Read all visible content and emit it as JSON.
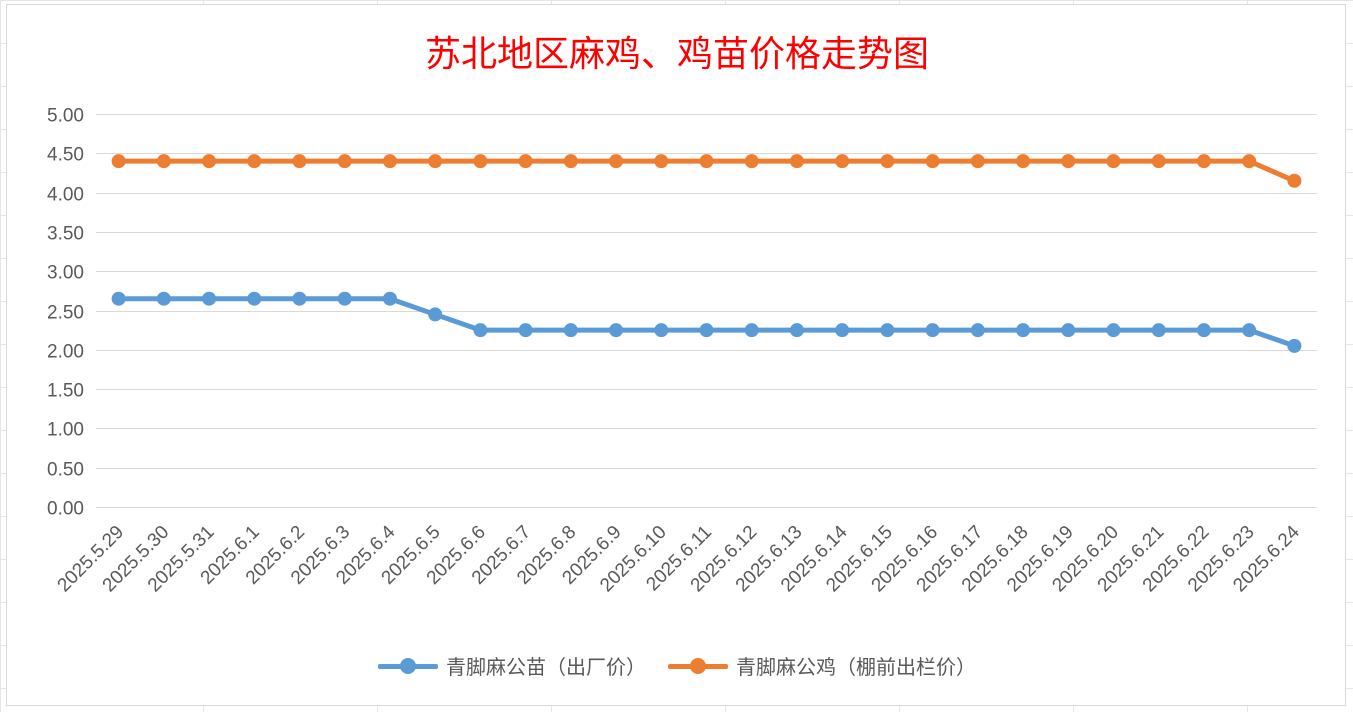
{
  "colors": {
    "title": "#ff0000",
    "series_blue": "#5b9bd5",
    "series_orange": "#ed7d31",
    "gridline": "#d9d9d9",
    "tick_text": "#595959"
  },
  "chart_data": {
    "type": "line",
    "title": "苏北地区麻鸡、鸡苗价格走势图",
    "xlabel": "",
    "ylabel": "",
    "ylim": [
      0,
      5
    ],
    "ytick_step": 0.5,
    "ytick_labels": [
      "0.00",
      "0.50",
      "1.00",
      "1.50",
      "2.00",
      "2.50",
      "3.00",
      "3.50",
      "4.00",
      "4.50",
      "5.00"
    ],
    "grid": true,
    "legend_position": "bottom",
    "categories": [
      "2025.5.29",
      "2025.5.30",
      "2025.5.31",
      "2025.6.1",
      "2025.6.2",
      "2025.6.3",
      "2025.6.4",
      "2025.6.5",
      "2025.6.6",
      "2025.6.7",
      "2025.6.8",
      "2025.6.9",
      "2025.6.10",
      "2025.6.11",
      "2025.6.12",
      "2025.6.13",
      "2025.6.14",
      "2025.6.15",
      "2025.6.16",
      "2025.6.17",
      "2025.6.18",
      "2025.6.19",
      "2025.6.20",
      "2025.6.21",
      "2025.6.22",
      "2025.6.23",
      "2025.6.24"
    ],
    "series": [
      {
        "name": "青脚麻公苗（出厂价）",
        "color": "#5b9bd5",
        "values": [
          2.65,
          2.65,
          2.65,
          2.65,
          2.65,
          2.65,
          2.65,
          2.45,
          2.25,
          2.25,
          2.25,
          2.25,
          2.25,
          2.25,
          2.25,
          2.25,
          2.25,
          2.25,
          2.25,
          2.25,
          2.25,
          2.25,
          2.25,
          2.25,
          2.25,
          2.25,
          2.05
        ]
      },
      {
        "name": "青脚麻公鸡（棚前出栏价）",
        "color": "#ed7d31",
        "values": [
          4.4,
          4.4,
          4.4,
          4.4,
          4.4,
          4.4,
          4.4,
          4.4,
          4.4,
          4.4,
          4.4,
          4.4,
          4.4,
          4.4,
          4.4,
          4.4,
          4.4,
          4.4,
          4.4,
          4.4,
          4.4,
          4.4,
          4.4,
          4.4,
          4.4,
          4.4,
          4.15
        ]
      }
    ]
  }
}
